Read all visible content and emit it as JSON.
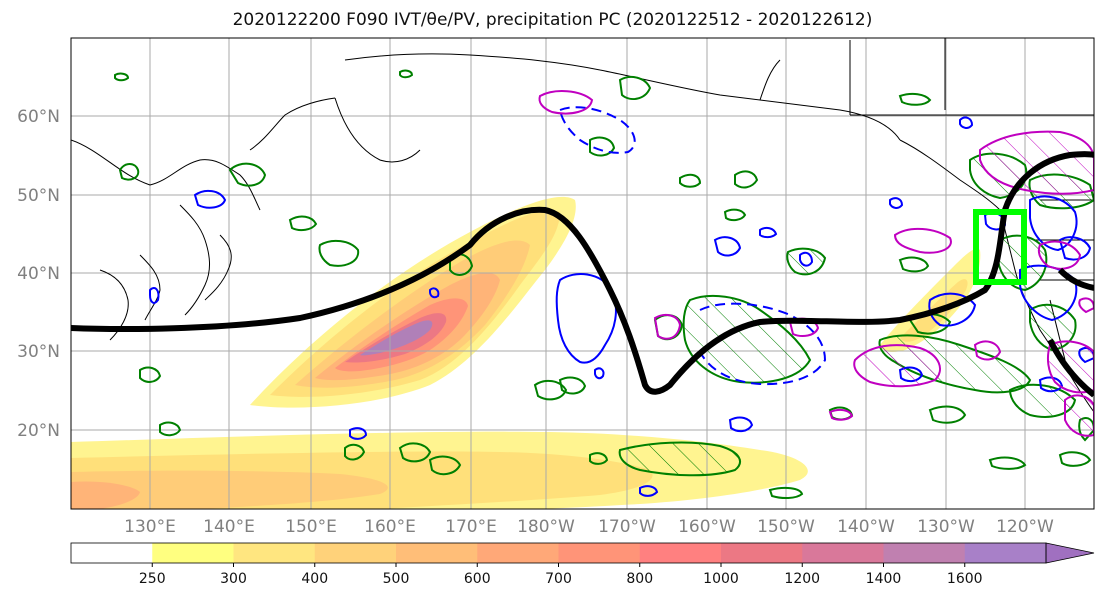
{
  "title": "2020122200 F090 IVT/θe/PV, precipitation PC (2020122512 - 2020122612)",
  "lat_labels": [
    "60°N",
    "50°N",
    "40°N",
    "30°N",
    "20°N"
  ],
  "lon_labels": [
    "130°E",
    "140°E",
    "150°E",
    "160°E",
    "170°E",
    "180°W",
    "170°W",
    "160°W",
    "150°W",
    "140°W",
    "130°W",
    "120°W"
  ],
  "colorbar": {
    "ticks": [
      "250",
      "300",
      "400",
      "500",
      "600",
      "700",
      "800",
      "1000",
      "1200",
      "1400",
      "1600"
    ],
    "colors": [
      "#ffffff",
      "#ffff80",
      "#ffe680",
      "#ffd27a",
      "#ffbe78",
      "#ffa878",
      "#ff9478",
      "#ff8080",
      "#ec7884",
      "#d9789a",
      "#c080b0",
      "#a880c8",
      "#a070c0"
    ]
  },
  "colors": {
    "ivt_jet_axis": "#000000",
    "pc_positive": "#008000",
    "pc_negative": "#0000ff",
    "pv": "#c000c0",
    "highlight_box": "#00ff00"
  }
}
